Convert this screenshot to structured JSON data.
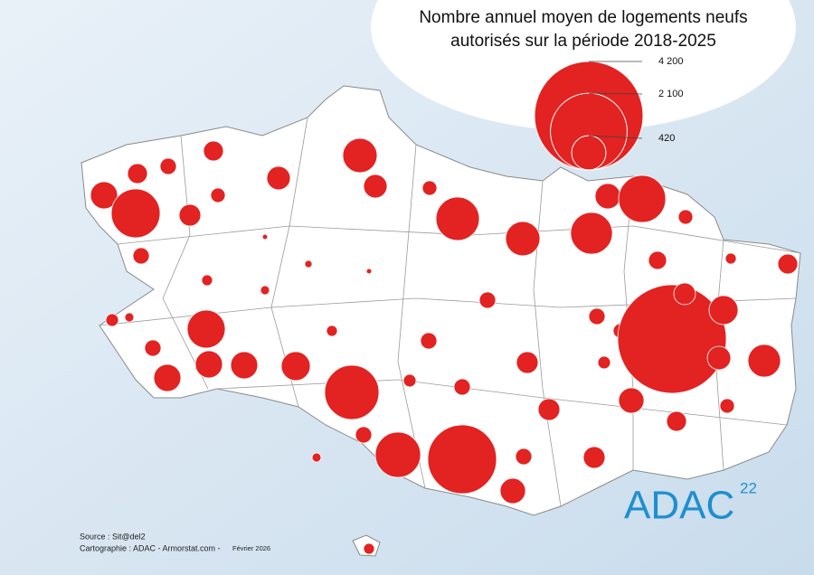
{
  "title": [
    "Nombre annuel moyen de logements neufs",
    "autorisés sur la période 2018-2025"
  ],
  "legend": {
    "values": [
      {
        "value": 4200,
        "label": "4 200"
      },
      {
        "value": 2100,
        "label": "2 100"
      },
      {
        "value": 420,
        "label": "420"
      }
    ],
    "color": "#e32222"
  },
  "bubbles": [
    262,
    850,
    141,
    95,
    141,
    75,
    168,
    197,
    420,
    197,
    75,
    670,
    420,
    620,
    230,
    790,
    75,
    117,
    42,
    141,
    95,
    10,
    19,
    10,
    42,
    29,
    57,
    29,
    515,
    95,
    262,
    262,
    262,
    300,
    1050,
    42,
    95,
    95,
    168,
    95,
    57,
    75,
    4200,
    168,
    300,
    197,
    380,
    230,
    75,
    141,
    168,
    95,
    57,
    95,
    730,
    1685,
    95,
    230,
    168,
    29,
    42
  ],
  "source": "Source : Sit@del2",
  "credits": "Cartographie : ADAC - Armorstat.com -",
  "date": "Février 2026",
  "logo": {
    "text": "ADAC",
    "number": "22"
  }
}
